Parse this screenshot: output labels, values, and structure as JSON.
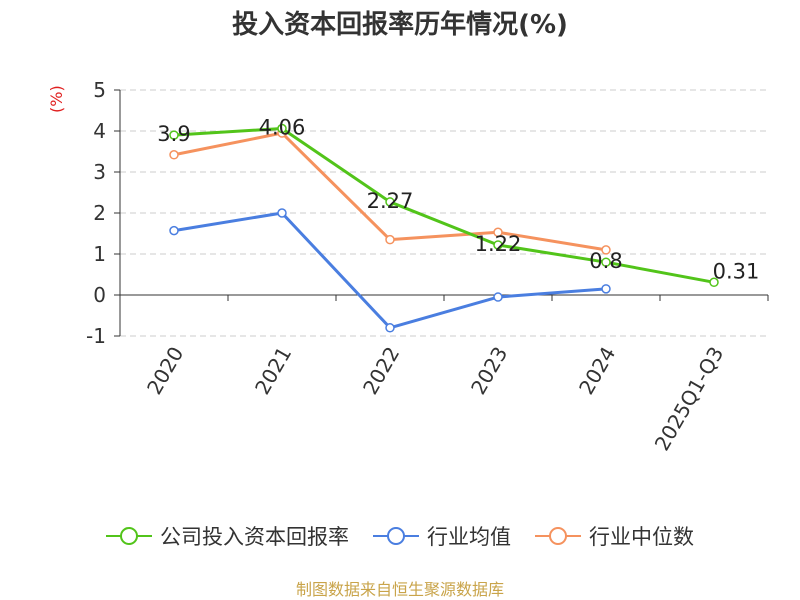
{
  "title": "投入资本回报率历年情况(%)",
  "source": "制图数据来自恒生聚源数据库",
  "colors": {
    "company": "#52c41a",
    "industry_avg": "#4a7ee0",
    "industry_median": "#f5925e"
  },
  "chart_data": {
    "type": "line",
    "title": "投入资本回报率历年情况(%)",
    "ylabel": "(%)",
    "ylim": [
      -1,
      5
    ],
    "yticks": [
      "5",
      "4",
      "3",
      "2",
      "1",
      "0",
      "-1"
    ],
    "categories": [
      "2020",
      "2021",
      "2022",
      "2023",
      "2024",
      "2025Q1-Q3"
    ],
    "grid": true,
    "legend_position": "bottom",
    "series": [
      {
        "name": "公司投入资本回报率",
        "values": [
          3.9,
          4.06,
          2.27,
          1.22,
          0.8,
          0.31
        ],
        "labels": [
          "3.9",
          "4.06",
          "2.27",
          "1.22",
          "0.8",
          "0.31"
        ]
      },
      {
        "name": "行业均值",
        "values": [
          1.57,
          2.0,
          -0.8,
          -0.05,
          0.15,
          null
        ]
      },
      {
        "name": "行业中位数",
        "values": [
          3.42,
          3.95,
          1.35,
          1.53,
          1.1,
          null
        ]
      }
    ]
  }
}
